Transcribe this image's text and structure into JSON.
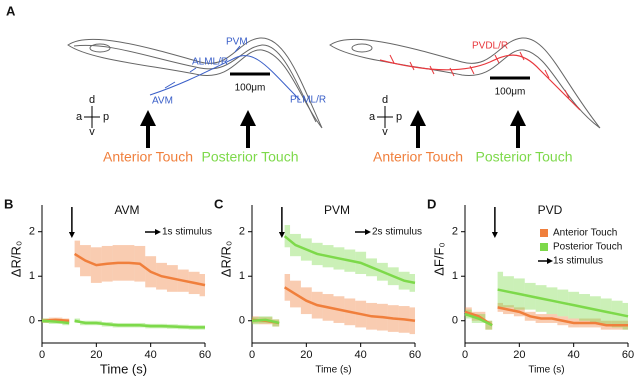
{
  "diagram": {
    "label": "A",
    "left": {
      "d": "d",
      "a": "a",
      "p": "p",
      "v": "v",
      "labels": [
        "ALML/R",
        "PVM",
        "AVM",
        "PLML/R"
      ],
      "scale": "100μm",
      "touch": [
        "Anterior Touch",
        "Posterior Touch"
      ]
    },
    "right": {
      "d": "d",
      "a": "a",
      "p": "p",
      "v": "v",
      "labels": [
        "PVDL/R"
      ],
      "scale": "100μm",
      "touch": [
        "Anterior Touch",
        "Posterior Touch"
      ]
    }
  },
  "chart_data": [
    {
      "type": "line",
      "panel": "B",
      "title": "AVM",
      "annotation": "1s stimulus",
      "xlabel": "Time (s)",
      "ylabel": "ΔR/R₀",
      "legend": false,
      "stimulus_time": 11,
      "x": [
        0,
        5,
        10,
        11,
        12,
        16,
        20,
        24,
        28,
        32,
        36,
        40,
        44,
        48,
        52,
        56,
        60
      ],
      "xlim": [
        0,
        60
      ],
      "xticks": [
        0,
        20,
        40,
        60
      ],
      "ylim": [
        -0.5,
        2.6
      ],
      "yticks": [
        0,
        1,
        2
      ],
      "series": [
        {
          "name": "Anterior Touch",
          "color": "#f07f3c",
          "values": [
            0,
            0.02,
            0,
            null,
            1.5,
            1.35,
            1.25,
            1.28,
            1.3,
            1.3,
            1.28,
            1.1,
            1.0,
            0.95,
            0.9,
            0.85,
            0.8
          ],
          "errors": [
            0.05,
            0.05,
            0.05,
            null,
            0.3,
            0.35,
            0.4,
            0.4,
            0.4,
            0.4,
            0.4,
            0.35,
            0.3,
            0.3,
            0.25,
            0.25,
            0.25
          ]
        },
        {
          "name": "Posterior Touch",
          "color": "#7dd94a",
          "values": [
            0,
            -0.02,
            -0.05,
            null,
            0,
            -0.05,
            -0.05,
            -0.08,
            -0.1,
            -0.1,
            -0.1,
            -0.12,
            -0.12,
            -0.13,
            -0.14,
            -0.15,
            -0.15
          ],
          "errors": [
            0.05,
            0.05,
            0.05,
            null,
            0.05,
            0.05,
            0.05,
            0.05,
            0.05,
            0.05,
            0.05,
            0.05,
            0.05,
            0.05,
            0.05,
            0.05,
            0.05
          ]
        }
      ]
    },
    {
      "type": "line",
      "panel": "C",
      "title": "PVM",
      "annotation": "2s stimulus",
      "xlabel": "Time (s)",
      "ylabel": "ΔR/R₀",
      "legend": false,
      "stimulus_time": 11,
      "x": [
        0,
        5,
        10,
        11,
        12,
        16,
        20,
        24,
        28,
        32,
        36,
        40,
        44,
        48,
        52,
        56,
        60
      ],
      "xlim": [
        0,
        60
      ],
      "xticks": [
        0,
        20,
        40,
        60
      ],
      "ylim": [
        -0.5,
        2.6
      ],
      "yticks": [
        0,
        1,
        2
      ],
      "series": [
        {
          "name": "Anterior Touch",
          "color": "#f07f3c",
          "values": [
            0.02,
            0,
            -0.05,
            null,
            0.75,
            0.6,
            0.45,
            0.35,
            0.3,
            0.25,
            0.2,
            0.15,
            0.1,
            0.08,
            0.05,
            0.03,
            0
          ],
          "errors": [
            0.08,
            0.08,
            0.08,
            null,
            0.3,
            0.3,
            0.3,
            0.3,
            0.3,
            0.3,
            0.3,
            0.3,
            0.3,
            0.3,
            0.3,
            0.3,
            0.3
          ]
        },
        {
          "name": "Posterior Touch",
          "color": "#7dd94a",
          "values": [
            0,
            0.02,
            -0.05,
            null,
            1.9,
            1.7,
            1.6,
            1.5,
            1.45,
            1.4,
            1.35,
            1.3,
            1.2,
            1.1,
            1.0,
            0.9,
            0.85
          ],
          "errors": [
            0.08,
            0.08,
            0.08,
            null,
            0.25,
            0.25,
            0.25,
            0.25,
            0.25,
            0.25,
            0.25,
            0.25,
            0.2,
            0.2,
            0.2,
            0.2,
            0.2
          ]
        }
      ]
    },
    {
      "type": "line",
      "panel": "D",
      "title": "PVD",
      "annotation": "1s stimulus",
      "xlabel": "Time (s)",
      "ylabel": "ΔF/F₀",
      "legend": true,
      "stimulus_time": 11,
      "x": [
        0,
        5,
        10,
        11,
        12,
        16,
        20,
        24,
        28,
        32,
        36,
        40,
        44,
        48,
        52,
        56,
        60
      ],
      "xlim": [
        0,
        60
      ],
      "xticks": [
        0,
        20,
        40,
        60
      ],
      "ylim": [
        -0.5,
        2.6
      ],
      "yticks": [
        0,
        1,
        2
      ],
      "series": [
        {
          "name": "Anterior Touch",
          "color": "#f07f3c",
          "values": [
            0.2,
            0.1,
            -0.1,
            null,
            0.3,
            0.25,
            0.2,
            0.1,
            0.05,
            0.05,
            0,
            -0.05,
            -0.05,
            -0.05,
            -0.1,
            -0.1,
            -0.1
          ],
          "errors": [
            0.1,
            0.1,
            0.1,
            null,
            0.1,
            0.1,
            0.1,
            0.1,
            0.1,
            0.1,
            0.1,
            0.1,
            0.1,
            0.1,
            0.1,
            0.1,
            0.1
          ]
        },
        {
          "name": "Posterior Touch",
          "color": "#7dd94a",
          "values": [
            0.15,
            0.05,
            -0.1,
            null,
            0.7,
            0.65,
            0.6,
            0.55,
            0.5,
            0.45,
            0.4,
            0.35,
            0.3,
            0.25,
            0.2,
            0.15,
            0.1
          ],
          "errors": [
            0.1,
            0.1,
            0.1,
            null,
            0.4,
            0.35,
            0.35,
            0.3,
            0.3,
            0.3,
            0.3,
            0.3,
            0.3,
            0.3,
            0.3,
            0.3,
            0.3
          ]
        }
      ]
    }
  ]
}
